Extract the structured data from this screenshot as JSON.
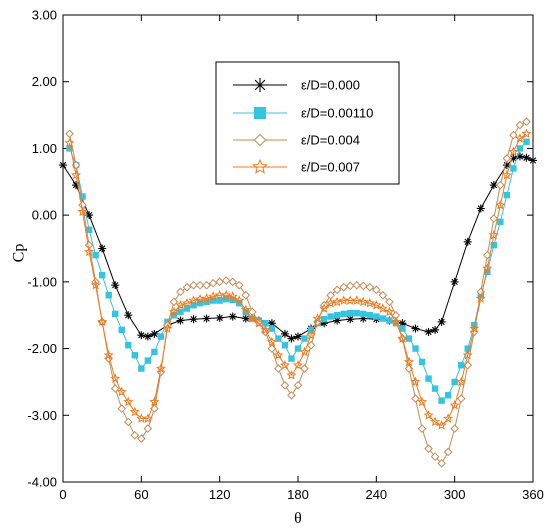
{
  "chart_data": {
    "type": "line",
    "xlabel": "θ",
    "ylabel": "Cp",
    "xlim": [
      0,
      360
    ],
    "ylim": [
      -4,
      3
    ],
    "x_ticks": [
      0,
      60,
      120,
      180,
      240,
      300,
      360
    ],
    "x_tick_labels": [
      "0",
      "60",
      "120",
      "180",
      "240",
      "300",
      "360"
    ],
    "y_ticks": [
      -4,
      -3,
      -2,
      -1,
      0,
      1,
      2,
      3
    ],
    "y_tick_labels": [
      "-4.00",
      "-3.00",
      "-2.00",
      "-1.00",
      "0.00",
      "1.00",
      "2.00",
      "3.00"
    ],
    "grid": false,
    "legend_position": "top-center",
    "series": [
      {
        "name": "ε/D=0.000",
        "color": "#000000",
        "marker": "asterisk",
        "x": [
          0,
          10,
          20,
          30,
          40,
          50,
          60,
          65,
          70,
          80,
          90,
          100,
          110,
          120,
          130,
          140,
          150,
          160,
          170,
          175,
          180,
          190,
          200,
          210,
          220,
          230,
          240,
          250,
          260,
          270,
          280,
          285,
          290,
          300,
          310,
          320,
          330,
          340,
          345,
          350,
          355,
          360
        ],
        "y": [
          0.75,
          0.45,
          0.0,
          -0.5,
          -1.05,
          -1.5,
          -1.8,
          -1.82,
          -1.78,
          -1.65,
          -1.58,
          -1.56,
          -1.55,
          -1.54,
          -1.52,
          -1.55,
          -1.58,
          -1.62,
          -1.78,
          -1.85,
          -1.82,
          -1.7,
          -1.62,
          -1.58,
          -1.56,
          -1.55,
          -1.56,
          -1.58,
          -1.62,
          -1.7,
          -1.75,
          -1.72,
          -1.6,
          -1.0,
          -0.4,
          0.1,
          0.45,
          0.75,
          0.85,
          0.88,
          0.86,
          0.82
        ]
      },
      {
        "name": "ε/D=0.00110",
        "color": "#33c4e0",
        "marker": "square",
        "x": [
          5,
          10,
          15,
          20,
          25,
          30,
          35,
          40,
          45,
          50,
          55,
          60,
          65,
          70,
          75,
          80,
          85,
          90,
          95,
          100,
          105,
          110,
          115,
          120,
          125,
          130,
          135,
          140,
          145,
          150,
          155,
          160,
          165,
          170,
          175,
          180,
          185,
          190,
          195,
          200,
          205,
          210,
          215,
          220,
          225,
          230,
          235,
          240,
          245,
          250,
          255,
          260,
          265,
          270,
          275,
          280,
          285,
          290,
          295,
          300,
          305,
          310,
          315,
          320,
          325,
          330,
          335,
          340,
          345,
          350,
          355
        ],
        "y": [
          1.0,
          0.75,
          0.28,
          -0.22,
          -0.6,
          -0.9,
          -1.2,
          -1.48,
          -1.72,
          -1.95,
          -2.1,
          -2.3,
          -2.18,
          -2.05,
          -1.82,
          -1.6,
          -1.5,
          -1.45,
          -1.4,
          -1.35,
          -1.32,
          -1.3,
          -1.28,
          -1.28,
          -1.26,
          -1.27,
          -1.32,
          -1.45,
          -1.55,
          -1.58,
          -1.62,
          -1.7,
          -1.85,
          -1.95,
          -2.15,
          -2.0,
          -1.85,
          -1.72,
          -1.62,
          -1.56,
          -1.52,
          -1.5,
          -1.48,
          -1.47,
          -1.47,
          -1.48,
          -1.5,
          -1.52,
          -1.55,
          -1.58,
          -1.62,
          -1.7,
          -1.85,
          -2.0,
          -2.2,
          -2.45,
          -2.6,
          -2.78,
          -2.7,
          -2.5,
          -2.25,
          -2.0,
          -1.65,
          -1.2,
          -0.85,
          -0.45,
          -0.1,
          0.3,
          0.7,
          1.0,
          1.1
        ]
      },
      {
        "name": "ε/D=0.004",
        "color": "#c78a55",
        "marker": "diamond",
        "x": [
          5,
          10,
          15,
          20,
          25,
          30,
          35,
          40,
          45,
          50,
          55,
          60,
          65,
          70,
          75,
          80,
          85,
          90,
          95,
          100,
          105,
          110,
          115,
          120,
          125,
          130,
          135,
          140,
          145,
          150,
          155,
          160,
          165,
          170,
          175,
          180,
          185,
          190,
          195,
          200,
          205,
          210,
          215,
          220,
          225,
          230,
          235,
          240,
          245,
          250,
          255,
          260,
          265,
          270,
          275,
          280,
          285,
          290,
          295,
          300,
          305,
          310,
          315,
          320,
          325,
          330,
          335,
          340,
          345,
          350,
          355
        ],
        "y": [
          1.22,
          0.75,
          0.15,
          -0.45,
          -1.0,
          -1.6,
          -2.15,
          -2.6,
          -2.9,
          -3.1,
          -3.3,
          -3.35,
          -3.2,
          -2.9,
          -2.35,
          -1.65,
          -1.3,
          -1.15,
          -1.08,
          -1.05,
          -1.05,
          -1.05,
          -1.02,
          -1.0,
          -0.98,
          -1.0,
          -1.05,
          -1.2,
          -1.45,
          -1.6,
          -1.75,
          -2.0,
          -2.3,
          -2.55,
          -2.7,
          -2.55,
          -2.3,
          -1.95,
          -1.6,
          -1.35,
          -1.2,
          -1.12,
          -1.08,
          -1.06,
          -1.05,
          -1.06,
          -1.08,
          -1.12,
          -1.2,
          -1.3,
          -1.5,
          -1.85,
          -2.3,
          -2.75,
          -3.2,
          -3.5,
          -3.62,
          -3.72,
          -3.55,
          -3.2,
          -2.75,
          -2.25,
          -1.75,
          -1.15,
          -0.6,
          -0.05,
          0.45,
          0.85,
          1.2,
          1.35,
          1.4
        ]
      },
      {
        "name": "ε/D=0.007",
        "color": "#f07a1e",
        "marker": "star",
        "x": [
          5,
          10,
          15,
          20,
          25,
          30,
          35,
          40,
          45,
          50,
          55,
          60,
          65,
          70,
          75,
          80,
          85,
          90,
          95,
          100,
          105,
          110,
          115,
          120,
          125,
          130,
          135,
          140,
          145,
          150,
          155,
          160,
          165,
          170,
          175,
          180,
          185,
          190,
          195,
          200,
          205,
          210,
          215,
          220,
          225,
          230,
          235,
          240,
          245,
          250,
          255,
          260,
          265,
          270,
          275,
          280,
          285,
          290,
          295,
          300,
          305,
          310,
          315,
          320,
          325,
          330,
          335,
          340,
          345,
          350,
          355
        ],
        "y": [
          1.08,
          0.6,
          0.05,
          -0.55,
          -1.05,
          -1.6,
          -2.1,
          -2.45,
          -2.65,
          -2.8,
          -2.95,
          -3.05,
          -3.05,
          -2.8,
          -2.3,
          -1.7,
          -1.45,
          -1.35,
          -1.32,
          -1.28,
          -1.26,
          -1.25,
          -1.22,
          -1.2,
          -1.2,
          -1.22,
          -1.28,
          -1.42,
          -1.55,
          -1.62,
          -1.72,
          -1.9,
          -2.1,
          -2.25,
          -2.4,
          -2.25,
          -2.05,
          -1.8,
          -1.55,
          -1.4,
          -1.32,
          -1.3,
          -1.28,
          -1.28,
          -1.28,
          -1.3,
          -1.32,
          -1.35,
          -1.4,
          -1.45,
          -1.6,
          -1.85,
          -2.2,
          -2.5,
          -2.8,
          -3.0,
          -3.1,
          -3.15,
          -3.05,
          -2.85,
          -2.5,
          -2.1,
          -1.7,
          -1.25,
          -0.8,
          -0.3,
          0.15,
          0.6,
          0.95,
          1.15,
          1.22
        ]
      }
    ]
  }
}
